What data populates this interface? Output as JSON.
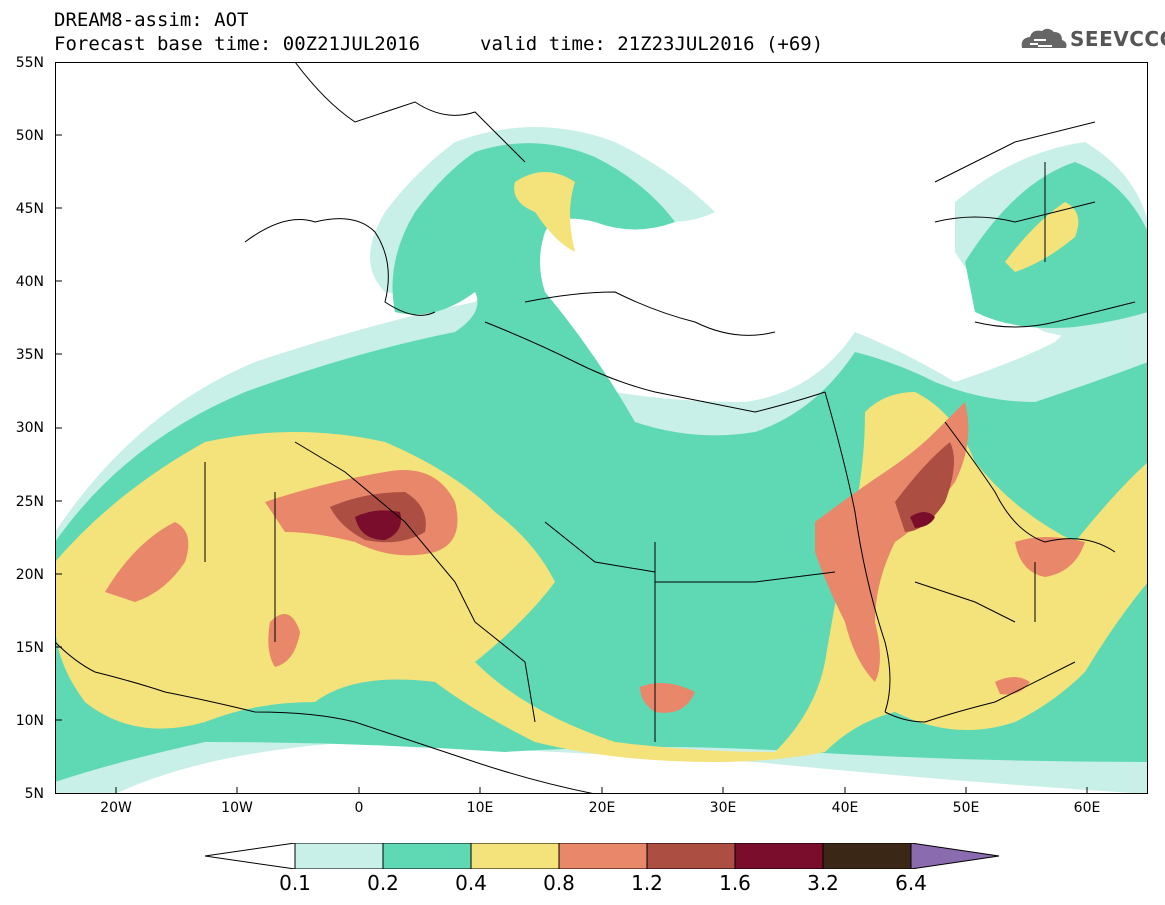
{
  "header": {
    "title": "DREAM8-assim: AOT",
    "base_time": "Forecast base time: 00Z21JUL2016",
    "valid_time": "valid time: 21Z23JUL2016 (+69)",
    "logo_text": "SEEVCCC"
  },
  "axes": {
    "lat_labels": [
      "55N",
      "50N",
      "45N",
      "40N",
      "35N",
      "30N",
      "25N",
      "20N",
      "15N",
      "10N",
      "5N"
    ],
    "lon_labels": [
      "20W",
      "10W",
      "0",
      "10E",
      "20E",
      "30E",
      "40E",
      "50E",
      "60E"
    ],
    "lon_range": [
      -25,
      65
    ],
    "lat_range": [
      5,
      55
    ]
  },
  "colorbar": {
    "labels": [
      "0.1",
      "0.2",
      "0.4",
      "0.8",
      "1.2",
      "1.6",
      "3.2",
      "6.4"
    ],
    "colors": [
      "#c9f0e8",
      "#5fd9b4",
      "#f4e27a",
      "#e8876a",
      "#ad4e43",
      "#7a0d2b",
      "#3b2715",
      "#8b6bb0"
    ]
  },
  "colors": {
    "land_border": "#000000",
    "background": "#ffffff"
  }
}
